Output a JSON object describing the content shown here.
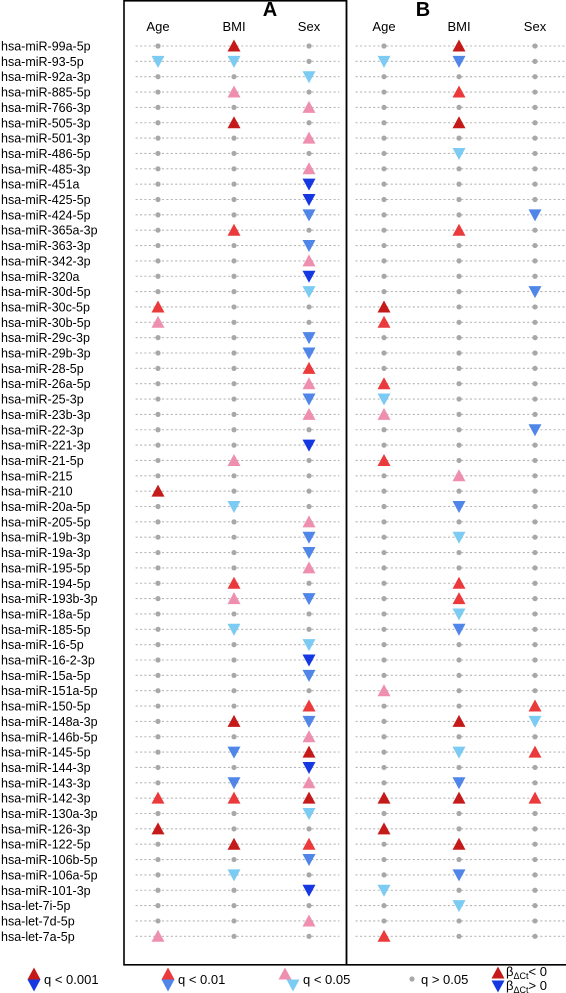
{
  "chart_data": {
    "type": "scatter",
    "panels": [
      {
        "id": "A",
        "title": "A",
        "columns": [
          "Age",
          "BMI",
          "Sex"
        ],
        "marks": {
          "hsa-miR-99a-5p": {
            "BMI": "up3"
          },
          "hsa-miR-93-5p": {
            "Age": "dn1",
            "BMI": "dn1"
          },
          "hsa-miR-92a-3p": {
            "Sex": "dn1"
          },
          "hsa-miR-885-5p": {
            "BMI": "up1"
          },
          "hsa-miR-766-3p": {
            "Sex": "up1"
          },
          "hsa-miR-505-3p": {
            "BMI": "up3"
          },
          "hsa-miR-501-3p": {
            "Sex": "up1"
          },
          "hsa-miR-485-3p": {
            "Sex": "up1"
          },
          "hsa-miR-451a": {
            "Sex": "dn3"
          },
          "hsa-miR-425-5p": {
            "Sex": "dn3"
          },
          "hsa-miR-424-5p": {
            "Sex": "dn2"
          },
          "hsa-miR-365a-3p": {
            "BMI": "up2"
          },
          "hsa-miR-363-3p": {
            "Sex": "dn2"
          },
          "hsa-miR-342-3p": {
            "Sex": "up1"
          },
          "hsa-miR-320a": {
            "Sex": "dn3"
          },
          "hsa-miR-30d-5p": {
            "Sex": "dn1"
          },
          "hsa-miR-30c-5p": {
            "Age": "up2"
          },
          "hsa-miR-30b-5p": {
            "Age": "up1"
          },
          "hsa-miR-29c-3p": {
            "Sex": "dn2"
          },
          "hsa-miR-29b-3p": {
            "Sex": "dn2"
          },
          "hsa-miR-28-5p": {
            "Sex": "up2"
          },
          "hsa-miR-26a-5p": {
            "Sex": "up1"
          },
          "hsa-miR-25-3p": {
            "Sex": "dn2"
          },
          "hsa-miR-23b-3p": {
            "Sex": "up1"
          },
          "hsa-miR-221-3p": {
            "Sex": "dn3"
          },
          "hsa-miR-21-5p": {
            "BMI": "up1"
          },
          "hsa-miR-210": {
            "Age": "up3"
          },
          "hsa-miR-20a-5p": {
            "BMI": "dn1"
          },
          "hsa-miR-205-5p": {
            "Sex": "up1"
          },
          "hsa-miR-19b-3p": {
            "Sex": "dn2"
          },
          "hsa-miR-19a-3p": {
            "Sex": "dn2"
          },
          "hsa-miR-195-5p": {
            "Sex": "up1"
          },
          "hsa-miR-194-5p": {
            "BMI": "up2"
          },
          "hsa-miR-193b-3p": {
            "BMI": "up1",
            "Sex": "dn2"
          },
          "hsa-miR-185-5p": {
            "BMI": "dn1"
          },
          "hsa-miR-16-5p": {
            "Sex": "dn1"
          },
          "hsa-miR-16-2-3p": {
            "Sex": "dn3"
          },
          "hsa-miR-15a-5p": {
            "Sex": "dn2"
          },
          "hsa-miR-150-5p": {
            "Sex": "up2"
          },
          "hsa-miR-148a-3p": {
            "BMI": "up3",
            "Sex": "dn2"
          },
          "hsa-miR-146b-5p": {
            "Sex": "up1"
          },
          "hsa-miR-145-5p": {
            "BMI": "dn2",
            "Sex": "up3"
          },
          "hsa-miR-144-3p": {
            "Sex": "dn3"
          },
          "hsa-miR-143-3p": {
            "BMI": "dn2",
            "Sex": "up1"
          },
          "hsa-miR-142-3p": {
            "Age": "up2",
            "BMI": "up2",
            "Sex": "up3"
          },
          "hsa-miR-130a-3p": {
            "Sex": "dn1"
          },
          "hsa-miR-126-3p": {
            "Age": "up3"
          },
          "hsa-miR-122-5p": {
            "BMI": "up3",
            "Sex": "up2"
          },
          "hsa-miR-106b-5p": {
            "Sex": "dn2"
          },
          "hsa-miR-106a-5p": {
            "BMI": "dn1"
          },
          "hsa-miR-101-3p": {
            "Sex": "dn3"
          },
          "hsa-let-7d-5p": {
            "Sex": "up1"
          },
          "hsa-let-7a-5p": {
            "Age": "up1"
          }
        }
      },
      {
        "id": "B",
        "title": "B",
        "columns": [
          "Age",
          "BMI",
          "Sex"
        ],
        "marks": {
          "hsa-miR-99a-5p": {
            "BMI": "up3"
          },
          "hsa-miR-93-5p": {
            "Age": "dn1",
            "BMI": "dn2"
          },
          "hsa-miR-885-5p": {
            "BMI": "up2"
          },
          "hsa-miR-505-3p": {
            "BMI": "up3"
          },
          "hsa-miR-486-5p": {
            "BMI": "dn1"
          },
          "hsa-miR-424-5p": {
            "Sex": "dn2"
          },
          "hsa-miR-365a-3p": {
            "BMI": "up2"
          },
          "hsa-miR-30d-5p": {
            "Sex": "dn2"
          },
          "hsa-miR-30c-5p": {
            "Age": "up3"
          },
          "hsa-miR-30b-5p": {
            "Age": "up2"
          },
          "hsa-miR-26a-5p": {
            "Age": "up2"
          },
          "hsa-miR-25-3p": {
            "Age": "dn1"
          },
          "hsa-miR-23b-3p": {
            "Age": "up1"
          },
          "hsa-miR-22-3p": {
            "Sex": "dn2"
          },
          "hsa-miR-21-5p": {
            "Age": "up2"
          },
          "hsa-miR-215": {
            "BMI": "up1"
          },
          "hsa-miR-20a-5p": {
            "BMI": "dn2"
          },
          "hsa-miR-19b-3p": {
            "BMI": "dn1"
          },
          "hsa-miR-194-5p": {
            "BMI": "up2"
          },
          "hsa-miR-193b-3p": {
            "BMI": "up2"
          },
          "hsa-miR-18a-5p": {
            "BMI": "dn1"
          },
          "hsa-miR-185-5p": {
            "BMI": "dn2"
          },
          "hsa-miR-151a-5p": {
            "Age": "up1"
          },
          "hsa-miR-150-5p": {
            "Sex": "up2"
          },
          "hsa-miR-148a-3p": {
            "BMI": "up3",
            "Sex": "dn1"
          },
          "hsa-miR-145-5p": {
            "BMI": "dn1",
            "Sex": "up2"
          },
          "hsa-miR-143-3p": {
            "BMI": "dn2"
          },
          "hsa-miR-142-3p": {
            "Age": "up3",
            "BMI": "up3",
            "Sex": "up2"
          },
          "hsa-miR-126-3p": {
            "Age": "up3"
          },
          "hsa-miR-122-5p": {
            "BMI": "up3"
          },
          "hsa-miR-106a-5p": {
            "BMI": "dn2"
          },
          "hsa-miR-101-3p": {
            "Age": "dn1"
          },
          "hsa-let-7i-5p": {
            "BMI": "dn1"
          },
          "hsa-let-7a-5p": {
            "Age": "up2"
          }
        }
      }
    ],
    "rows": [
      "hsa-miR-99a-5p",
      "hsa-miR-93-5p",
      "hsa-miR-92a-3p",
      "hsa-miR-885-5p",
      "hsa-miR-766-3p",
      "hsa-miR-505-3p",
      "hsa-miR-501-3p",
      "hsa-miR-486-5p",
      "hsa-miR-485-3p",
      "hsa-miR-451a",
      "hsa-miR-425-5p",
      "hsa-miR-424-5p",
      "hsa-miR-365a-3p",
      "hsa-miR-363-3p",
      "hsa-miR-342-3p",
      "hsa-miR-320a",
      "hsa-miR-30d-5p",
      "hsa-miR-30c-5p",
      "hsa-miR-30b-5p",
      "hsa-miR-29c-3p",
      "hsa-miR-29b-3p",
      "hsa-miR-28-5p",
      "hsa-miR-26a-5p",
      "hsa-miR-25-3p",
      "hsa-miR-23b-3p",
      "hsa-miR-22-3p",
      "hsa-miR-221-3p",
      "hsa-miR-21-5p",
      "hsa-miR-215",
      "hsa-miR-210",
      "hsa-miR-20a-5p",
      "hsa-miR-205-5p",
      "hsa-miR-19b-3p",
      "hsa-miR-19a-3p",
      "hsa-miR-195-5p",
      "hsa-miR-194-5p",
      "hsa-miR-193b-3p",
      "hsa-miR-18a-5p",
      "hsa-miR-185-5p",
      "hsa-miR-16-5p",
      "hsa-miR-16-2-3p",
      "hsa-miR-15a-5p",
      "hsa-miR-151a-5p",
      "hsa-miR-150-5p",
      "hsa-miR-148a-3p",
      "hsa-miR-146b-5p",
      "hsa-miR-145-5p",
      "hsa-miR-144-3p",
      "hsa-miR-143-3p",
      "hsa-miR-142-3p",
      "hsa-miR-130a-3p",
      "hsa-miR-126-3p",
      "hsa-miR-122-5p",
      "hsa-miR-106b-5p",
      "hsa-miR-106a-5p",
      "hsa-miR-101-3p",
      "hsa-let-7i-5p",
      "hsa-let-7d-5p",
      "hsa-let-7a-5p"
    ],
    "legend": [
      {
        "label": "q < 0.001",
        "level": 3
      },
      {
        "label": "q < 0.01",
        "level": 2
      },
      {
        "label": "q < 0.05",
        "level": 1
      },
      {
        "label": "q > 0.05",
        "level": 0
      }
    ],
    "direction_legend": {
      "up_label": "< 0",
      "down_label": "> 0",
      "symbol": "β",
      "subscript": "ΔCt"
    },
    "colors": {
      "up3": "#c41a1a",
      "up2": "#ea3a3c",
      "up1": "#ef8fb0",
      "dn3": "#1538e0",
      "dn2": "#4f86e8",
      "dn1": "#7ccbf2",
      "dot": "#a8a8a8"
    }
  }
}
